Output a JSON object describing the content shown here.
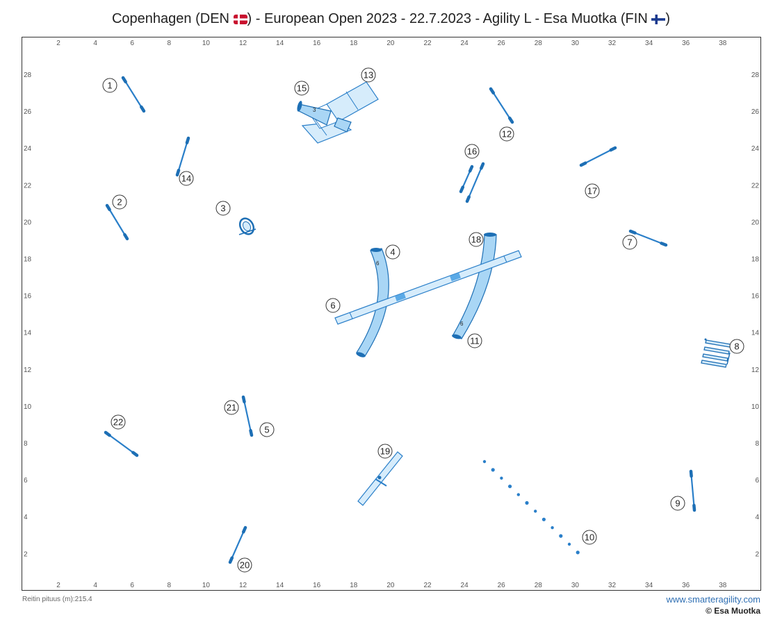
{
  "header": {
    "title_part1": "Copenhagen (DEN ",
    "title_part2": ") - European Open 2023 - 22.7.2023 - Agility L - Esa Muotka (FIN ",
    "title_part3": ")",
    "flag_den": "denmark-flag-icon",
    "flag_fin": "finland-flag-icon"
  },
  "axes": {
    "x_ticks": [
      "2",
      "4",
      "6",
      "8",
      "10",
      "12",
      "14",
      "16",
      "18",
      "20",
      "22",
      "24",
      "26",
      "28",
      "30",
      "32",
      "34",
      "36",
      "38"
    ],
    "y_ticks": [
      "28",
      "26",
      "24",
      "22",
      "20",
      "18",
      "16",
      "14",
      "12",
      "10",
      "8",
      "6",
      "4",
      "2"
    ]
  },
  "obstacles": {
    "numbers": [
      "1",
      "2",
      "3",
      "4",
      "5",
      "6",
      "7",
      "8",
      "9",
      "10",
      "11",
      "12",
      "13",
      "14",
      "15",
      "16",
      "17",
      "18",
      "19",
      "20",
      "21",
      "22"
    ],
    "tunnel_labels": [
      "3",
      "6",
      "6"
    ]
  },
  "footer": {
    "course_length": "Reitin pituus (m):215.4",
    "url": "www.smarteragility.com",
    "copyright": "© Esa Muotka"
  },
  "colors": {
    "equipment": "#2a7fc9",
    "tunnel_fill": "#a9d6f5",
    "url": "#2f6fb3"
  }
}
